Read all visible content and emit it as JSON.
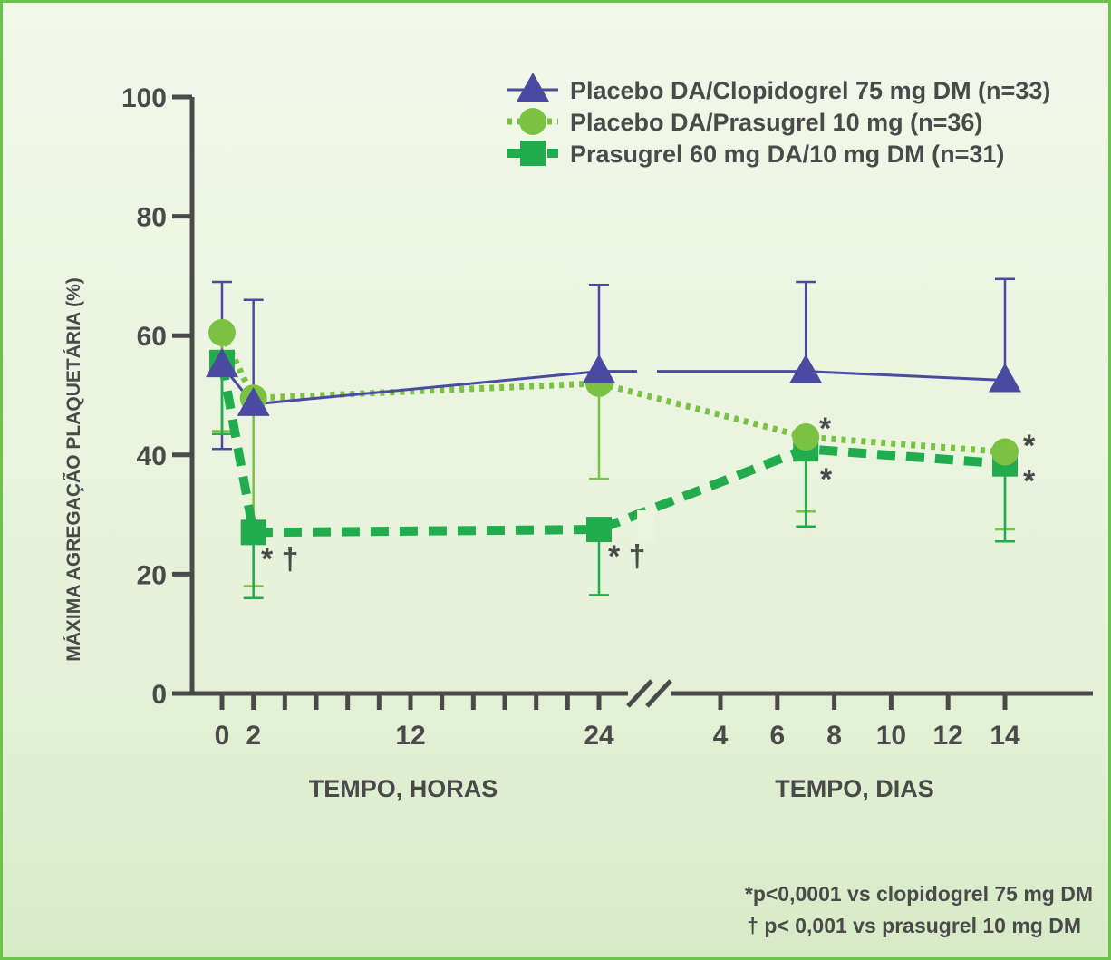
{
  "chart_data": {
    "type": "line",
    "ylabel": "MÁXIMA AGREGAÇÃO PLAQUETÁRIA (%)",
    "xlabel_hours": "TEMPO, HORAS",
    "xlabel_days": "TEMPO, DIAS",
    "ylim": [
      0,
      100
    ],
    "yticks": [
      "0",
      "20",
      "40",
      "60",
      "80",
      "100"
    ],
    "xticks_hours": [
      "0",
      "2",
      "12",
      "24"
    ],
    "xticks_days": [
      "4",
      "6",
      "8",
      "10",
      "12",
      "14"
    ],
    "x_points": [
      "0 h",
      "2 h",
      "24 h",
      "7 d",
      "14 d"
    ],
    "legend_position": "top-right",
    "series": [
      {
        "name": "Placebo DA/Clopidogrel 75 mg DM (n=33)",
        "marker": "triangle",
        "line": "solid",
        "color": "#4a4ba0",
        "values": [
          55,
          48.5,
          54,
          54,
          52.5
        ],
        "err_upper": [
          69,
          66,
          68.5,
          69,
          69.5
        ],
        "err_lower": [
          41,
          null,
          null,
          null,
          null
        ]
      },
      {
        "name": "Placebo DA/Prasugrel 10 mg (n=36)",
        "marker": "circle",
        "line": "dotted",
        "color": "#7cc242",
        "values": [
          60.5,
          49.5,
          52,
          43,
          40.5
        ],
        "err_upper": [
          null,
          null,
          null,
          null,
          null
        ],
        "err_lower": [
          44,
          18,
          36,
          30.5,
          27.5
        ]
      },
      {
        "name": "Prasugrel 60 mg DA/10 mg DM (n=31)",
        "marker": "square",
        "line": "dashed",
        "color": "#22ac4e",
        "values": [
          55.5,
          27,
          27.5,
          41,
          38.5
        ],
        "err_upper": [
          null,
          null,
          null,
          null,
          null
        ],
        "err_lower": [
          43.5,
          16,
          16.5,
          28,
          25.5
        ]
      }
    ],
    "annotations": [
      {
        "point": 1,
        "text": "* †"
      },
      {
        "point": 2,
        "text": "* †"
      },
      {
        "point": 3,
        "text": "*",
        "series": "circle"
      },
      {
        "point": 3,
        "text": "*",
        "series": "square"
      },
      {
        "point": 4,
        "text": "*",
        "series": "circle"
      },
      {
        "point": 4,
        "text": "*",
        "series": "square"
      }
    ]
  },
  "footnotes": {
    "line1": "*p<0,0001 vs clopidogrel 75 mg DM",
    "line2": "† p< 0,001 vs prasugrel 10 mg DM"
  }
}
